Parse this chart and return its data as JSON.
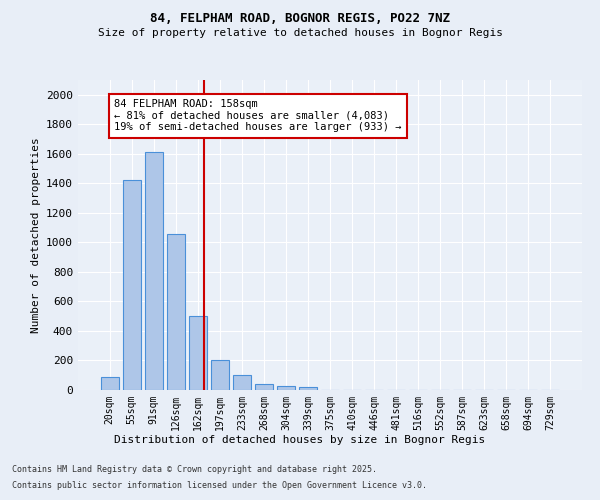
{
  "title1": "84, FELPHAM ROAD, BOGNOR REGIS, PO22 7NZ",
  "title2": "Size of property relative to detached houses in Bognor Regis",
  "xlabel": "Distribution of detached houses by size in Bognor Regis",
  "ylabel": "Number of detached properties",
  "bar_labels": [
    "20sqm",
    "55sqm",
    "91sqm",
    "126sqm",
    "162sqm",
    "197sqm",
    "233sqm",
    "268sqm",
    "304sqm",
    "339sqm",
    "375sqm",
    "410sqm",
    "446sqm",
    "481sqm",
    "516sqm",
    "552sqm",
    "587sqm",
    "623sqm",
    "658sqm",
    "694sqm",
    "729sqm"
  ],
  "bar_values": [
    85,
    1420,
    1610,
    1055,
    500,
    205,
    105,
    40,
    30,
    20,
    0,
    0,
    0,
    0,
    0,
    0,
    0,
    0,
    0,
    0,
    0
  ],
  "bar_color": "#aec6e8",
  "bar_edge_color": "#4a90d9",
  "vline_color": "#cc0000",
  "annotation_text": "84 FELPHAM ROAD: 158sqm\n← 81% of detached houses are smaller (4,083)\n19% of semi-detached houses are larger (933) →",
  "annotation_box_color": "#ffffff",
  "annotation_box_edge": "#cc0000",
  "ylim": [
    0,
    2100
  ],
  "yticks": [
    0,
    200,
    400,
    600,
    800,
    1000,
    1200,
    1400,
    1600,
    1800,
    2000
  ],
  "bg_color": "#e8eef7",
  "plot_bg_color": "#eaf0f8",
  "footer1": "Contains HM Land Registry data © Crown copyright and database right 2025.",
  "footer2": "Contains public sector information licensed under the Open Government Licence v3.0."
}
